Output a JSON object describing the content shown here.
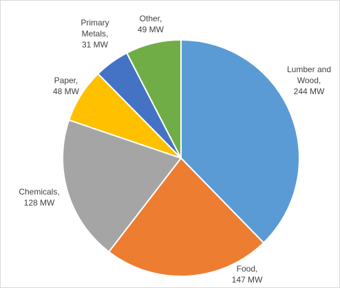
{
  "chart_data": {
    "type": "pie",
    "title": "",
    "start_angle_deg": 0,
    "direction": "clockwise",
    "slices": [
      {
        "category": "Lumber and Wood",
        "value": 244,
        "color": "#5b9bd5",
        "label_lines": [
          "Lumber and",
          "Wood,",
          "244 MW"
        ]
      },
      {
        "category": "Food",
        "value": 147,
        "color": "#ed7d31",
        "label_lines": [
          "Food,",
          "147 MW"
        ]
      },
      {
        "category": "Chemicals",
        "value": 128,
        "color": "#a5a5a5",
        "label_lines": [
          "Chemicals,",
          "128 MW"
        ]
      },
      {
        "category": "Paper",
        "value": 48,
        "color": "#ffc000",
        "label_lines": [
          "Paper,",
          "48 MW"
        ]
      },
      {
        "category": "Primary Metals",
        "value": 31,
        "color": "#4472c4",
        "label_lines": [
          "Primary",
          "Metals,",
          "31 MW"
        ]
      },
      {
        "category": "Other",
        "value": 49,
        "color": "#70ad47",
        "label_lines": [
          "Other,",
          "49 MW"
        ]
      }
    ],
    "legend": "none",
    "data_labels": "outside"
  }
}
